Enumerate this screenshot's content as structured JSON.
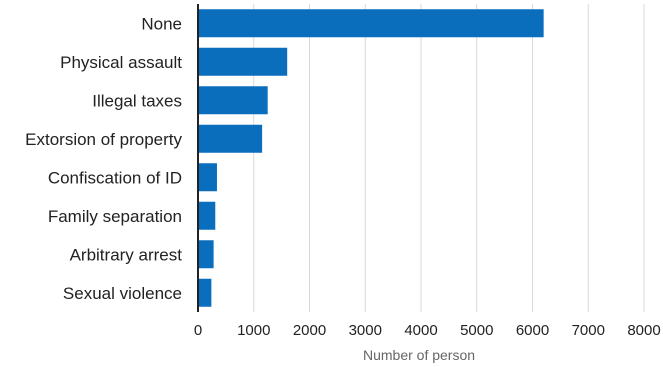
{
  "chart_data": {
    "type": "bar",
    "orientation": "horizontal",
    "categories": [
      "None",
      "Physical assault",
      "Illegal taxes",
      "Extorsion of property",
      "Confiscation of ID",
      "Family separation",
      "Arbitrary arrest",
      "Sexual violence"
    ],
    "values": [
      6200,
      1600,
      1250,
      1150,
      340,
      310,
      280,
      240
    ],
    "xlabel": "Number of person",
    "ylabel": "",
    "xlim": [
      0,
      8000
    ],
    "xticks": [
      0,
      1000,
      2000,
      3000,
      4000,
      5000,
      6000,
      7000,
      8000
    ],
    "grid": true,
    "bar_color": "#0a6ebd"
  }
}
